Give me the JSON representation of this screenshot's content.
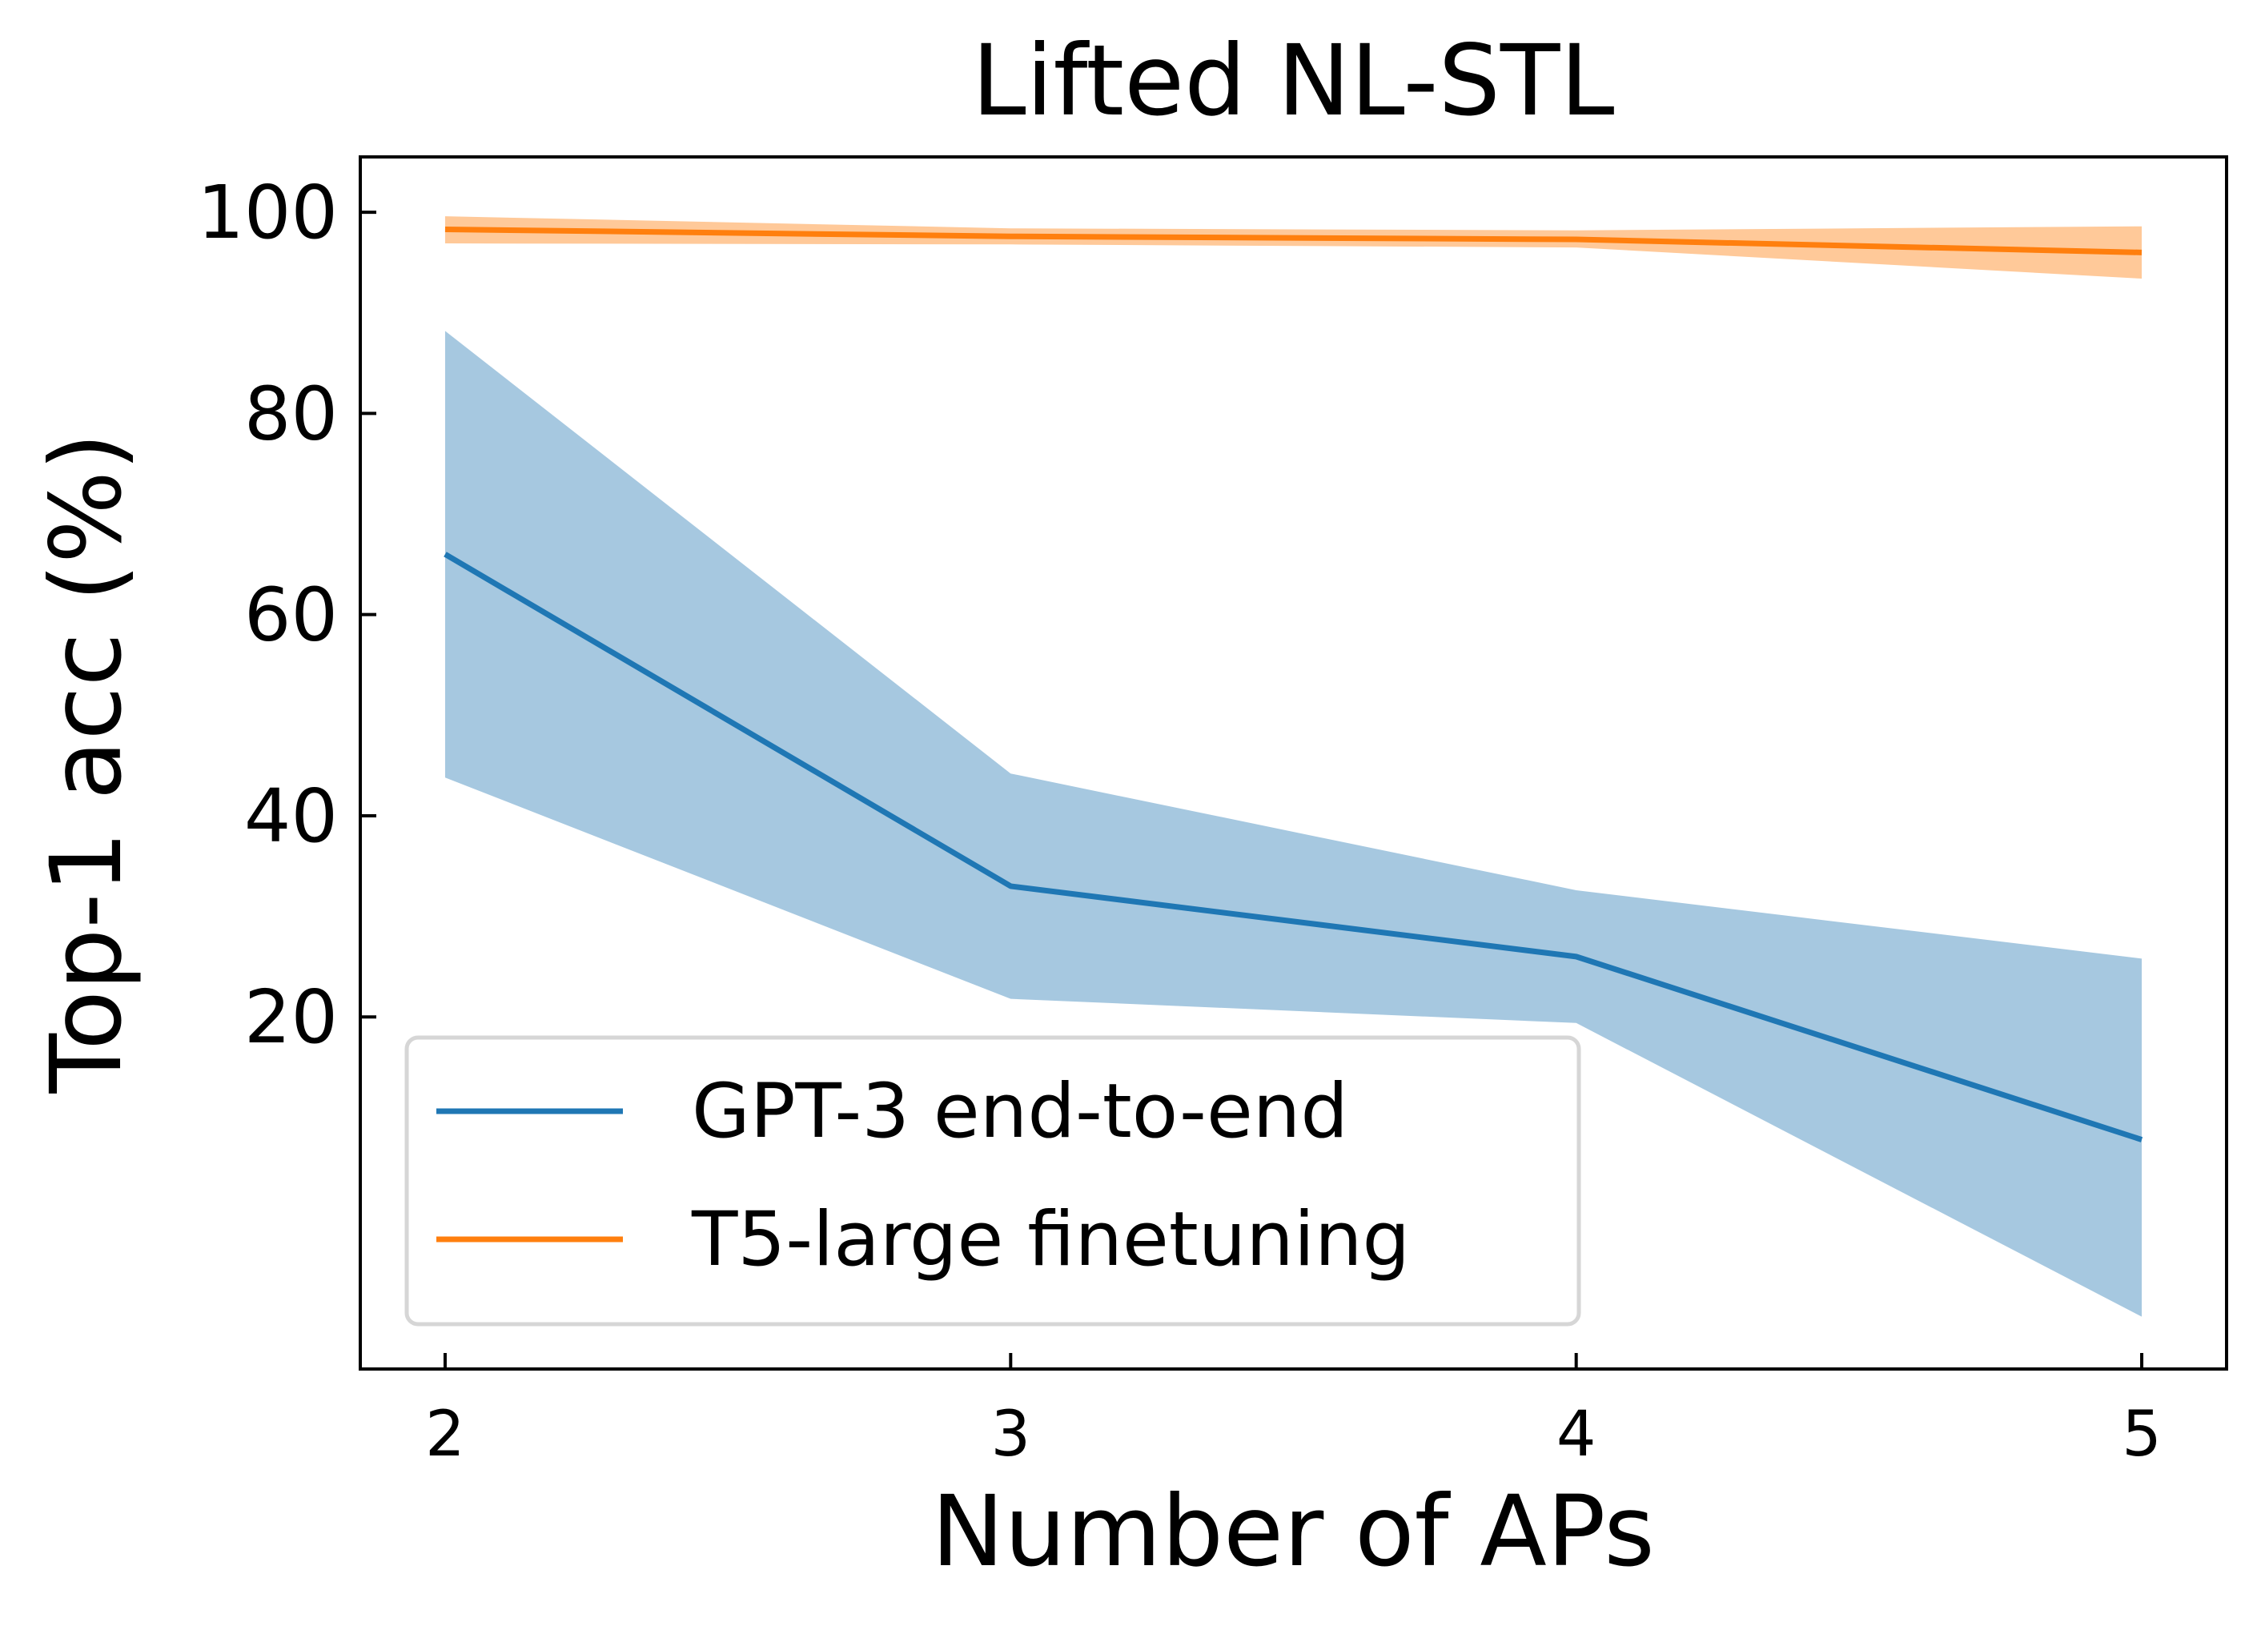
{
  "chart_data": {
    "type": "line",
    "title": "Lifted NL-STL",
    "xlabel": "Number of APs",
    "ylabel": "Top-1 acc (%)",
    "x": [
      2,
      3,
      4,
      5
    ],
    "xticks": [
      "2",
      "3",
      "4",
      "5"
    ],
    "yticks": [
      "20",
      "40",
      "60",
      "80",
      "100"
    ],
    "ytick_values": [
      20,
      40,
      60,
      80,
      100
    ],
    "xlim": [
      1.85,
      5.15
    ],
    "ylim": [
      -15,
      105.5
    ],
    "grid": false,
    "legend_position": "lower-left",
    "series": [
      {
        "name": "GPT-3 end-to-end",
        "color": "#1f77b4",
        "band_color": "#a6c8e0",
        "values": [
          66.0,
          33.0,
          26.0,
          7.8
        ],
        "upper": [
          88.2,
          44.2,
          32.6,
          25.8
        ],
        "lower": [
          43.8,
          21.8,
          19.4,
          -9.8
        ]
      },
      {
        "name": "T5-large finetuning",
        "color": "#ff7f0e",
        "band_color": "#ffc999",
        "values": [
          98.3,
          97.6,
          97.3,
          96.0
        ],
        "upper": [
          99.6,
          98.4,
          98.2,
          98.6
        ],
        "lower": [
          96.9,
          96.8,
          96.5,
          93.4
        ]
      }
    ]
  }
}
